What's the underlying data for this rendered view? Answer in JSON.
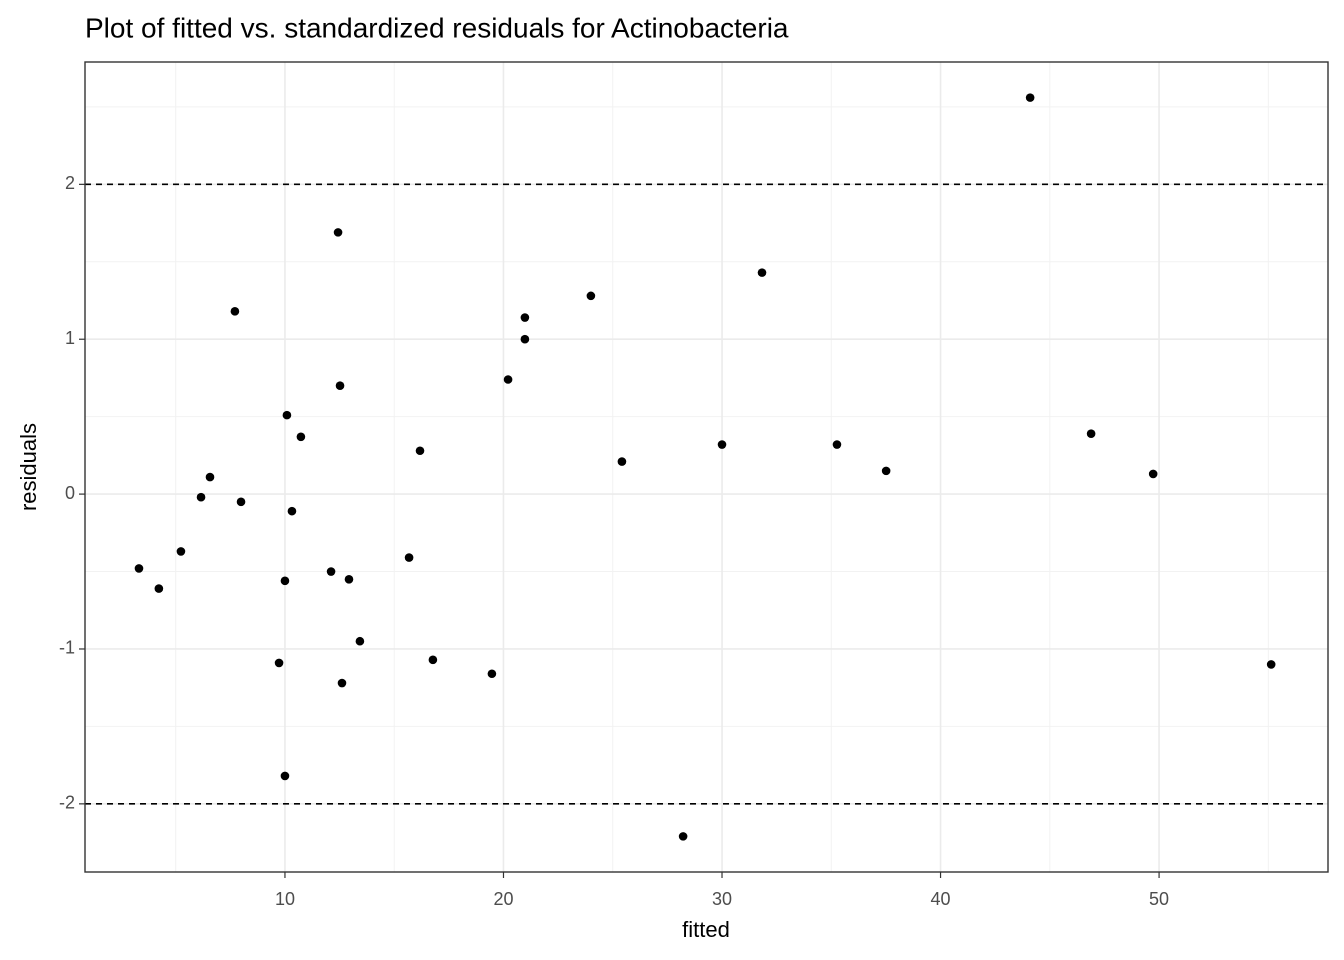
{
  "chart_data": {
    "type": "scatter",
    "title": "Plot of fitted vs. standardized residuals for Actinobacteria",
    "x_label": "fitted",
    "y_label": "residuals",
    "color": "#000000",
    "x": [
      3.32,
      4.23,
      5.24,
      6.16,
      6.57,
      7.71,
      7.99,
      9.73,
      10.0,
      10.0,
      10.09,
      10.32,
      10.73,
      12.11,
      12.43,
      12.52,
      12.61,
      12.93,
      13.43,
      15.68,
      16.18,
      16.77,
      19.47,
      20.21,
      20.98,
      20.98,
      24.0,
      25.42,
      28.22,
      30.0,
      31.83,
      35.26,
      37.51,
      44.1,
      46.89,
      49.73,
      55.13
    ],
    "values": [
      -0.48,
      -0.61,
      -0.37,
      -0.02,
      0.11,
      1.18,
      -0.05,
      -1.09,
      -0.56,
      -1.82,
      0.51,
      -0.11,
      0.37,
      -0.5,
      1.69,
      0.7,
      -1.22,
      -0.55,
      -0.95,
      -0.41,
      0.28,
      -1.07,
      -1.16,
      0.74,
      1.0,
      1.14,
      1.28,
      0.21,
      -2.21,
      0.32,
      1.43,
      0.32,
      0.15,
      2.56,
      0.39,
      0.13,
      -1.1
    ],
    "hlines": [
      2,
      -2
    ],
    "xlim": [
      0.85,
      57.73
    ],
    "ylim": [
      -2.44,
      2.79
    ],
    "xticks": [
      10,
      20,
      30,
      40,
      50
    ],
    "yticks": [
      -2,
      -1,
      0,
      1,
      2
    ],
    "x_minor_ticks": [
      5,
      15,
      25,
      35,
      45,
      55
    ],
    "y_minor_ticks": [
      -1.5,
      -0.5,
      0.5,
      1.5,
      2.5
    ],
    "grid": true
  }
}
